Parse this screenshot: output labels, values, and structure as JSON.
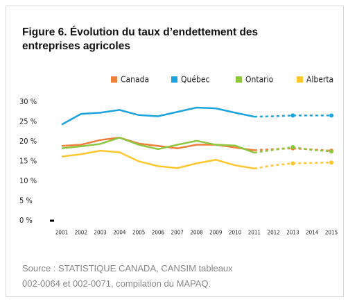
{
  "chart_data": {
    "type": "line",
    "title": [
      "Figure 6. Évolution du taux d’endettement des",
      "entreprises agricoles"
    ],
    "source": [
      "Source : STATISTIQUE CANADA, CANSIM tableaux",
      "002-0064 et 002-0071, compilation du MAPAQ."
    ],
    "categories": [
      "2001",
      "2002",
      "2003",
      "2004",
      "2005",
      "2006",
      "2007",
      "2008",
      "2009",
      "2010",
      "2011",
      "2012",
      "2013",
      "2014",
      "2015"
    ],
    "dashed_from": "2011",
    "markers": [
      "2013",
      "2015"
    ],
    "series": [
      {
        "name": "Canada",
        "color": "#f07f3c",
        "values": [
          18.9,
          19.2,
          20.4,
          21.0,
          19.5,
          18.9,
          18.3,
          19.2,
          19.2,
          18.5,
          17.8,
          18.1,
          18.3,
          18.0,
          17.7
        ]
      },
      {
        "name": "Québec",
        "color": "#1aa3dc",
        "values": [
          24.3,
          27.0,
          27.3,
          28.0,
          26.7,
          26.4,
          27.5,
          28.6,
          28.4,
          27.3,
          26.3,
          26.4,
          26.6,
          26.6,
          26.6
        ]
      },
      {
        "name": "Ontario",
        "color": "#8dc63f",
        "values": [
          18.3,
          18.8,
          19.4,
          21.0,
          19.2,
          18.1,
          19.2,
          20.2,
          19.2,
          19.0,
          17.2,
          17.9,
          18.6,
          17.9,
          17.5
        ]
      },
      {
        "name": "Alberta",
        "color": "#fdc82f",
        "values": [
          16.2,
          16.8,
          17.7,
          17.3,
          15.0,
          13.8,
          13.3,
          14.5,
          15.4,
          14.0,
          13.2,
          14.0,
          14.5,
          14.6,
          14.7
        ]
      }
    ],
    "ylim": [
      0,
      30
    ],
    "yticks": [
      {
        "value": 0,
        "label": "0 %"
      },
      {
        "value": 5,
        "label": "5 %"
      },
      {
        "value": 10,
        "label": "10 %"
      },
      {
        "value": 15,
        "label": "15 %"
      },
      {
        "value": 20,
        "label": "20 %"
      },
      {
        "value": 25,
        "label": "25 %"
      },
      {
        "value": 30,
        "label": "30 %"
      }
    ],
    "legend": "top"
  }
}
